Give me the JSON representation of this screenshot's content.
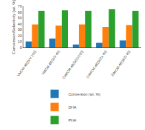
{
  "chart_data": {
    "type": "bar",
    "ylabel": "Conversion/Selectivity (wt. %)",
    "categories": [
      "VMCM-48(Si/V 100)",
      "VMCM-48(Si/V 40)",
      "CeMCM-48(Si/Ce100)",
      "CeMCM-48(Si/Ce 40)",
      "ZrMCM-48(Si/Zr 40)"
    ],
    "series": [
      {
        "name": "Conversion (wt. %)",
        "values": [
          10,
          15,
          5,
          8,
          12
        ]
      },
      {
        "name": "DHA",
        "values": [
          39,
          37,
          39,
          35,
          38
        ]
      },
      {
        "name": "PHA",
        "values": [
          62,
          63,
          62,
          65,
          62
        ]
      }
    ],
    "ylim": [
      0,
      70
    ],
    "yticks": [
      0,
      10,
      20,
      30,
      40,
      50,
      60,
      70
    ],
    "grid": false,
    "legend": "bottom"
  }
}
